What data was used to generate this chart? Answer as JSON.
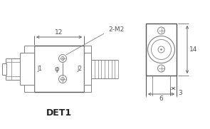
{
  "bg_color": "#ffffff",
  "line_color": "#808080",
  "dark_line": "#555555",
  "title": "DET1",
  "title_fontsize": 9,
  "dim_label_12": "12",
  "dim_label_14": "14",
  "dim_label_3": "3",
  "dim_label_6": "6",
  "label_2M2": "2-M2",
  "label_J1": "J1",
  "label_J2": "J2",
  "label_phi": "φ"
}
